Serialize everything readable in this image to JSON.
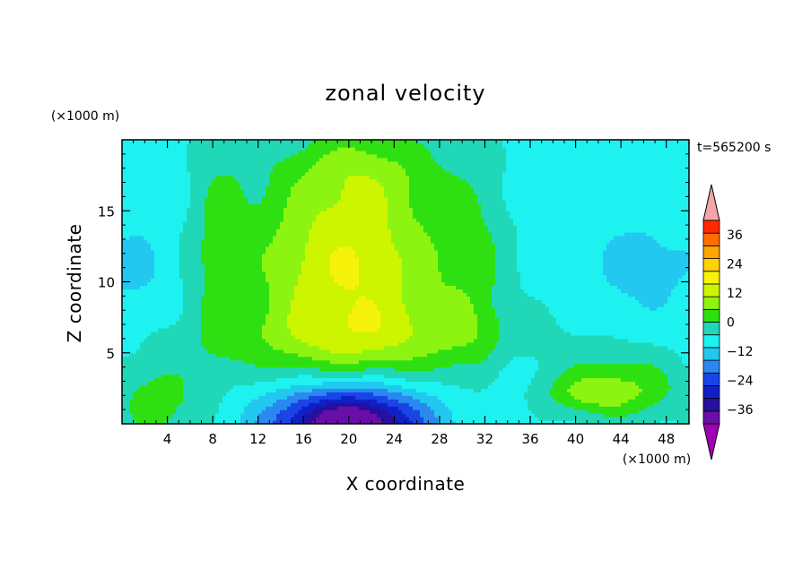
{
  "chart_data": {
    "type": "heatmap",
    "title": "zonal velocity",
    "xlabel": "X coordinate",
    "ylabel": "Z coordinate",
    "x_unit": "(×1000 m)",
    "y_unit": "(×1000 m)",
    "time_label": "t=565200 s",
    "xlim": [
      0,
      50
    ],
    "ylim": [
      0,
      20
    ],
    "x_ticks": [
      4,
      8,
      12,
      16,
      20,
      24,
      28,
      32,
      36,
      40,
      44,
      48
    ],
    "y_ticks": [
      5,
      10,
      15
    ],
    "colorbar": {
      "levels": [
        -42,
        -36,
        -30,
        -24,
        -18,
        -12,
        -6,
        0,
        6,
        12,
        18,
        24,
        30,
        36,
        42
      ],
      "tick_labels": [
        "36",
        "24",
        "12",
        "0",
        "−12",
        "−24",
        "−36"
      ],
      "tick_values": [
        36,
        24,
        12,
        0,
        -12,
        -24,
        -36
      ],
      "colors": [
        "#6a0ea8",
        "#280f9e",
        "#1020c8",
        "#1a45e6",
        "#2a88f0",
        "#22c8f0",
        "#1ef2f0",
        "#20d8b8",
        "#2ee012",
        "#8cf410",
        "#cdf500",
        "#f7f20a",
        "#ffd200",
        "#ffa400",
        "#ff6e00",
        "#ff2a00"
      ],
      "over_color": "#f4a6a6",
      "under_color": "#a000b4"
    },
    "field_features": [
      {
        "kind": "jet_core_positive",
        "x": 21,
        "z": 11,
        "peak": 17
      },
      {
        "kind": "jet_core_negative",
        "x": 20,
        "z": 0.3,
        "peak": -36
      }
    ]
  }
}
